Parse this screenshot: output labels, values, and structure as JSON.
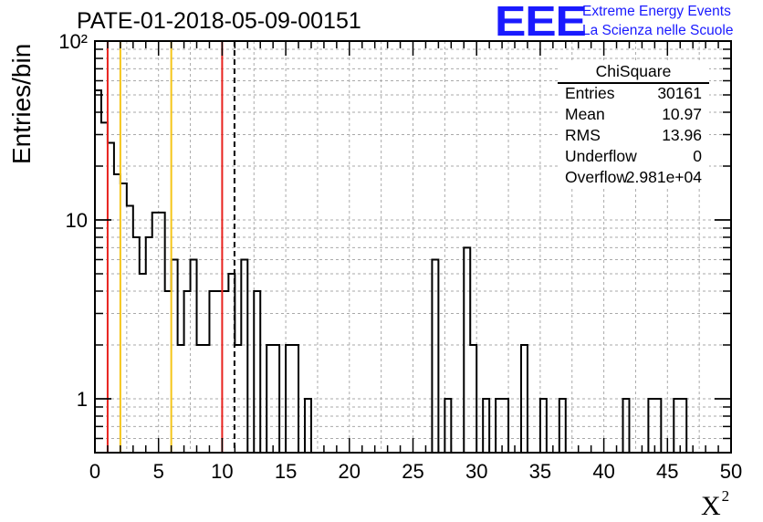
{
  "header": {
    "title": "PATE-01-2018-05-09-00151",
    "logo_mark": "EEE",
    "logo_line1": "Extreme Energy Events",
    "logo_line2": "La Scienza nelle Scuole"
  },
  "stats_box": {
    "title": "ChiSquare",
    "rows": [
      {
        "key": "Entries",
        "value": "30161"
      },
      {
        "key": "Mean",
        "value": "10.97"
      },
      {
        "key": "RMS",
        "value": "13.96"
      },
      {
        "key": "Underflow",
        "value": "0"
      },
      {
        "key": "Overflow",
        "value": "2.981e+04"
      }
    ]
  },
  "colors": {
    "red_line": "#e8231e",
    "yellow_line": "#f5c518",
    "histogram": "#000000",
    "grid": "#aaaaaa",
    "logo": "#1a1aff"
  },
  "chart_data": {
    "type": "histogram",
    "title": "PATE-01-2018-05-09-00151",
    "xlabel": "X²",
    "ylabel": "Entries/bin",
    "xlim": [
      0,
      50
    ],
    "ylim": [
      0.5,
      100
    ],
    "yscale": "log",
    "grid": true,
    "legend": "top-right",
    "x_ticks": [
      "0",
      "5",
      "10",
      "15",
      "20",
      "25",
      "30",
      "35",
      "40",
      "45",
      "50"
    ],
    "y_tick_labels": [
      {
        "value": 1,
        "label": "1"
      },
      {
        "value": 10,
        "label": "10"
      },
      {
        "value": 100,
        "label": "10²"
      }
    ],
    "bin_width": 0.5,
    "counts": [
      53,
      35,
      27,
      18,
      16,
      12,
      8,
      5,
      8,
      11,
      11,
      4,
      6,
      2,
      4,
      6,
      2,
      2,
      4,
      4,
      4,
      5,
      2,
      6,
      0,
      4,
      0,
      2,
      2,
      0,
      2,
      2,
      0,
      1,
      0,
      0,
      0,
      0,
      0,
      0,
      0,
      0,
      0,
      0,
      0,
      0,
      0,
      0,
      0,
      0,
      0,
      0,
      0,
      6,
      0,
      1,
      0,
      0,
      7,
      2,
      0,
      1,
      0,
      1,
      1,
      0,
      0,
      2,
      0,
      0,
      1,
      0,
      0,
      1,
      0,
      0,
      0,
      0,
      0,
      0,
      0,
      0,
      0,
      1,
      0,
      0,
      0,
      1,
      1,
      0,
      0,
      1,
      1,
      0,
      0,
      0,
      0,
      0,
      0,
      0
    ],
    "vertical_lines": [
      {
        "x": 1,
        "color": "red",
        "style": "solid"
      },
      {
        "x": 2,
        "color": "yellow",
        "style": "solid"
      },
      {
        "x": 6,
        "color": "yellow",
        "style": "solid"
      },
      {
        "x": 10,
        "color": "red",
        "style": "solid"
      },
      {
        "x": 10.97,
        "color": "black",
        "style": "dashed"
      }
    ]
  }
}
